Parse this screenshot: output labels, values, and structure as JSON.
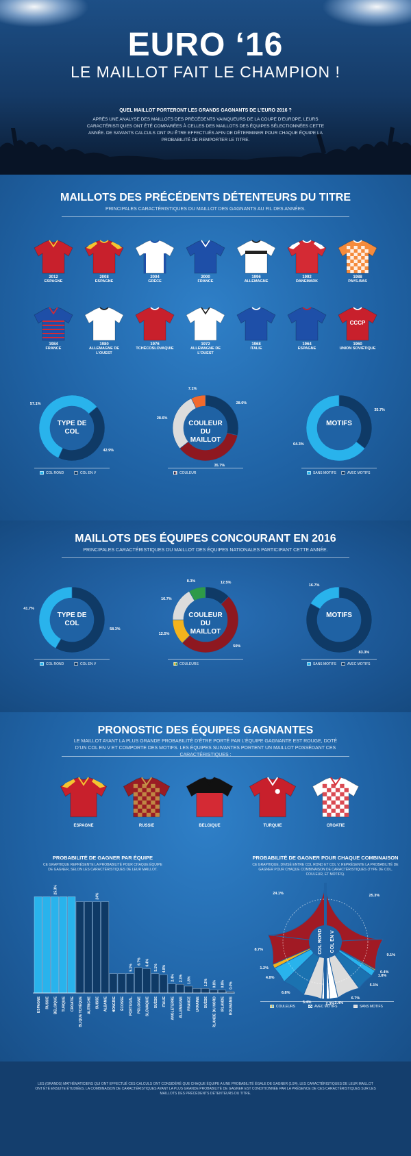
{
  "header": {
    "title": "EURO ‘16",
    "subtitle": "LE MAILLOT FAIT LE CHAMPION !",
    "question": "QUEL MAILLOT PORTERONT LES GRANDS GAGNANTS DE L’EURO 2016 ?",
    "intro": "APRÈS UNE ANALYSE DES MAILLOTS DES PRÉCÉDENTS VAINQUEURS DE LA COUPE D’EUROPE, LEURS CARACTÉRISTIQUES ONT ÉTÉ COMPARÉES À CELLES DES MAILLOTS DES ÉQUIPES SÉLECTIONNÉES CETTE ANNÉE. DE SAVANTS CALCULS ONT PU ÊTRE EFFECTUÉS AFIN DE DÉTERMINER POUR CHAQUE ÉQUIPE LA PROBABILITÉ DE REMPORTER LE TITRE."
  },
  "section1": {
    "title": "MAILLOTS DES PRÉCÉDENTS DÉTENTEURS DU TITRE",
    "subtitle": "PRINCIPALES CARACTÉRISTIQUES DU MAILLOT DES GAGNANTS AU FIL DES ANNÉES.",
    "jerseys": [
      {
        "year": "2012",
        "country": "ESPAGNE",
        "color": "#c8202c",
        "trim": "#f4c430",
        "collar": "v",
        "pattern": "none"
      },
      {
        "year": "2008",
        "country": "ESPAGNE",
        "color": "#c8202c",
        "trim": "#f4c430",
        "collar": "round",
        "pattern": "shoulders"
      },
      {
        "year": "2004",
        "country": "GRÈCE",
        "color": "#ffffff",
        "trim": "#1e4fa8",
        "collar": "round",
        "pattern": "side"
      },
      {
        "year": "2000",
        "country": "FRANCE",
        "color": "#1e4fa8",
        "trim": "#ffffff",
        "collar": "v",
        "pattern": "none"
      },
      {
        "year": "1996",
        "country": "ALLEMAGNE",
        "color": "#ffffff",
        "trim": "#222222",
        "collar": "round",
        "pattern": "chest"
      },
      {
        "year": "1992",
        "country": "DANEMARK",
        "color": "#d42a34",
        "trim": "#ffffff",
        "collar": "round",
        "pattern": "shoulders"
      },
      {
        "year": "1988",
        "country": "PAYS-BAS",
        "color": "#f58b3c",
        "trim": "#ffffff",
        "collar": "round",
        "pattern": "checks"
      },
      {
        "year": "1984",
        "country": "FRANCE",
        "color": "#1e4fa8",
        "trim": "#d42a34",
        "collar": "v",
        "pattern": "stripes"
      },
      {
        "year": "1980",
        "country": "ALLEMAGNE DE L’OUEST",
        "color": "#ffffff",
        "trim": "#222222",
        "collar": "round",
        "pattern": "none"
      },
      {
        "year": "1976",
        "country": "TCHÉCOSLOVAQUIE",
        "color": "#c8202c",
        "trim": "#ffffff",
        "collar": "round",
        "pattern": "none"
      },
      {
        "year": "1972",
        "country": "ALLEMAGNE DE L’OUEST",
        "color": "#ffffff",
        "trim": "#222222",
        "collar": "v",
        "pattern": "none"
      },
      {
        "year": "1968",
        "country": "ITALIE",
        "color": "#1e4fa8",
        "trim": "#ffffff",
        "collar": "round",
        "pattern": "none"
      },
      {
        "year": "1964",
        "country": "ESPAGNE",
        "color": "#1e4fa8",
        "trim": "#c8202c",
        "collar": "round",
        "pattern": "none"
      },
      {
        "year": "1960",
        "country": "UNION SOVIÉTIQUE",
        "color": "#c8202c",
        "trim": "#ffffff",
        "collar": "round",
        "pattern": "none",
        "text": "CCCP"
      }
    ],
    "donuts": [
      {
        "label": "TYPE DE COL",
        "slices": [
          {
            "name": "COL ROND",
            "value": 57.1,
            "color": "#29b3ec",
            "pct": "57.1%"
          },
          {
            "name": "COL EN V",
            "value": 42.9,
            "color": "#0f3a66",
            "pct": "42.9%"
          }
        ]
      },
      {
        "label": "COULEUR DU MAILLOT",
        "slices": [
          {
            "name": "bleu",
            "value": 28.6,
            "color": "#0f3a66",
            "pct": "28.6%"
          },
          {
            "name": "rouge",
            "value": 35.7,
            "color": "#8e1820",
            "pct": "35.7%"
          },
          {
            "name": "blanc",
            "value": 28.6,
            "color": "#dcdcdc",
            "pct": "28.6%"
          },
          {
            "name": "orange",
            "value": 7.1,
            "color": "#f26a2c",
            "pct": "7.1%"
          }
        ],
        "legend": "COULEUR"
      },
      {
        "label": "MOTIFS",
        "slices": [
          {
            "name": "AVEC MOTIFS",
            "value": 35.7,
            "color": "#0f3a66",
            "pct": "35.7%"
          },
          {
            "name": "SANS MOTIFS",
            "value": 64.3,
            "color": "#29b3ec",
            "pct": "64.3%"
          }
        ]
      }
    ]
  },
  "section2": {
    "title": "MAILLOTS DES ÉQUIPES CONCOURANT EN 2016",
    "subtitle": "PRINCIPALES CARACTÉRISTIQUES DU MAILLOT DES ÉQUIPES NATIONALES PARTICIPANT CETTE ANNÉE.",
    "donuts": [
      {
        "label": "TYPE DE COL",
        "slices": [
          {
            "name": "COL EN V",
            "value": 58.3,
            "color": "#0f3a66",
            "pct": "58.3%"
          },
          {
            "name": "COL ROND",
            "value": 41.7,
            "color": "#29b3ec",
            "pct": "41.7%"
          }
        ]
      },
      {
        "label": "COULEUR DU MAILLOT",
        "slices": [
          {
            "name": "bleu",
            "value": 12.5,
            "color": "#0f3a66",
            "pct": "12.5%"
          },
          {
            "name": "rouge",
            "value": 50,
            "color": "#8e1820",
            "pct": "50%"
          },
          {
            "name": "jaune",
            "value": 12.5,
            "color": "#f4b31c",
            "pct": "12.5%"
          },
          {
            "name": "blanc",
            "value": 16.7,
            "color": "#dcdcdc",
            "pct": "16.7%"
          },
          {
            "name": "vert",
            "value": 8.3,
            "color": "#2e9a48",
            "pct": "8.3%"
          }
        ],
        "legend": "COULEURS"
      },
      {
        "label": "MOTIFS",
        "slices": [
          {
            "name": "AVEC MOTIFS",
            "value": 83.3,
            "color": "#0f3a66",
            "pct": "83.3%"
          },
          {
            "name": "SANS MOTIFS",
            "value": 16.7,
            "color": "#29b3ec",
            "pct": "16.7%"
          }
        ]
      }
    ]
  },
  "section3": {
    "title": "PRONOSTIC DES ÉQUIPES GAGNANTES",
    "subtitle": "LE MAILLOT AYANT LA PLUS GRANDE PROBABILITÉ D’ÊTRE PORTÉ PAR L’ÉQUIPE GAGNANTE EST ROUGE, DOTÉ D’UN COL EN V ET COMPORTE DES MOTIFS. LES ÉQUIPES SUIVANTES PORTENT UN MAILLOT POSSÉDANT CES CARACTÉRISTIQUES :",
    "winners": [
      {
        "country": "ESPAGNE",
        "color": "#c8202c",
        "trim": "#f4c430",
        "pattern": "shoulders"
      },
      {
        "country": "RUSSIE",
        "color": "#9a1c24",
        "trim": "#c79a4a",
        "pattern": "checks"
      },
      {
        "country": "BELGIQUE",
        "color": "#d42a34",
        "trim": "#111111",
        "pattern": "yoke"
      },
      {
        "country": "TURQUIE",
        "color": "#c8202c",
        "trim": "#ffffff",
        "pattern": "badge"
      },
      {
        "country": "CROATIE",
        "color": "#ffffff",
        "trim": "#d42a34",
        "pattern": "checks"
      }
    ],
    "bar_title": "PROBABILITÉ DE GAGNER PAR ÉQUIPE",
    "bar_sub": "CE GRAPHIQUE REPRÉSENTE LA PROBABILITÉ POUR CHAQUE ÉQUIPE DE GAGNER, SELON LES CARACTÉRISTIQUES DE LEUR MAILLOT.",
    "combo_title": "PROBABILITÉ DE GAGNER POUR CHAQUE COMBINAISON",
    "combo_sub": "CE GRAPHIQUE, DIVISÉ ENTRE COL ROND ET COL V, REPRÉSENTE LA PROBABILITÉ DE GAGNER POUR CHAQUE COMBINAISON DE CARACTÉRISTIQUES (TYPE DE COL, COULEUR, ET MOTIFS).",
    "combo_inner_left": "COL ROND",
    "combo_inner_right": "COL EN V",
    "combo_legend": [
      "COULEURS",
      "AVEC MOTIFS",
      "SANS MOTIFS"
    ]
  },
  "chart_data": [
    {
      "type": "pie",
      "title": "TYPE DE COL",
      "categories": [
        "COL ROND",
        "COL EN V"
      ],
      "values": [
        57.1,
        42.9
      ]
    },
    {
      "type": "pie",
      "title": "COULEUR DU MAILLOT",
      "categories": [
        "bleu",
        "rouge",
        "blanc",
        "orange"
      ],
      "values": [
        28.6,
        35.7,
        28.6,
        7.1
      ]
    },
    {
      "type": "pie",
      "title": "MOTIFS",
      "categories": [
        "SANS MOTIFS",
        "AVEC MOTIFS"
      ],
      "values": [
        64.3,
        35.7
      ]
    },
    {
      "type": "pie",
      "title": "TYPE DE COL",
      "categories": [
        "COL ROND",
        "COL EN V"
      ],
      "values": [
        41.7,
        58.3
      ]
    },
    {
      "type": "pie",
      "title": "COULEUR DU MAILLOT",
      "categories": [
        "bleu",
        "rouge",
        "jaune",
        "blanc",
        "vert"
      ],
      "values": [
        12.5,
        50,
        12.5,
        16.7,
        8.3
      ]
    },
    {
      "type": "pie",
      "title": "MOTIFS",
      "categories": [
        "SANS MOTIFS",
        "AVEC MOTIFS"
      ],
      "values": [
        16.7,
        83.3
      ]
    },
    {
      "type": "bar",
      "title": "PROBABILITÉ DE GAGNER PAR ÉQUIPE",
      "categories": [
        "ESPAGNE",
        "RUSSIE",
        "BELGIQUE",
        "TURQUIE",
        "CROATIE",
        "RÉPUBLIQUE TCHÈQUE",
        "AUTRICHE",
        "SUISSE",
        "ALBANIE",
        "HONGRIE",
        "ÉCOSSE",
        "PORTUGAL",
        "POLOGNE",
        "SLOVAQUIE",
        "SUÈDE",
        "ITALIE",
        "ANGLETERRE",
        "ALLEMAGNE",
        "FRANCE",
        "UKRAINE",
        "SUÈDE",
        "IRLANDE DU NORD",
        "IRLANDE",
        "ROUMANIE"
      ],
      "values": [
        25.3,
        25.3,
        25.3,
        25.3,
        25.3,
        24,
        24,
        24,
        24,
        5.1,
        5.1,
        5.1,
        6.7,
        6.4,
        5.1,
        4.8,
        2.4,
        2.3,
        1.8,
        1.2,
        1.2,
        0.8,
        0.8,
        0.4
      ],
      "labels": [
        {
          "index": 2,
          "text": "25.3%"
        },
        {
          "index": 7,
          "text": "24%"
        },
        {
          "index": 11,
          "text": "5.1%"
        },
        {
          "index": 12,
          "text": "6.7%"
        },
        {
          "index": 13,
          "text": "6.4%"
        },
        {
          "index": 14,
          "text": "5.1%"
        },
        {
          "index": 15,
          "text": "4.8%"
        },
        {
          "index": 16,
          "text": "2.4%"
        },
        {
          "index": 17,
          "text": "2.3%"
        },
        {
          "index": 18,
          "text": "1.8%"
        },
        {
          "index": 20,
          "text": "1.2%"
        },
        {
          "index": 21,
          "text": "0.8%"
        },
        {
          "index": 22,
          "text": "0.8%"
        },
        {
          "index": 23,
          "text": "0.4%"
        }
      ],
      "colors": [
        "#29b3ec",
        "#0f3a66"
      ],
      "ylim": [
        0,
        27
      ]
    },
    {
      "type": "pie",
      "title": "PROBABILITÉ DE GAGNER POUR CHAQUE COMBINAISON",
      "slices": [
        {
          "value": 25.3,
          "pct": "25.3%",
          "color": "#a11a24"
        },
        {
          "value": 9.1,
          "pct": "9.1%",
          "color": "#a11a24"
        },
        {
          "value": 0.4,
          "pct": "0.4%",
          "color": "#f4b31c"
        },
        {
          "value": 1.8,
          "pct": "1.8%",
          "color": "#29b3ec"
        },
        {
          "value": 5.1,
          "pct": "5.1%",
          "color": "#1b72b0"
        },
        {
          "value": 6.7,
          "pct": "6.7%",
          "color": "#dcdcdc"
        },
        {
          "value": 2.4,
          "pct": "2.4%",
          "color": "#ffffff"
        },
        {
          "value": 2.3,
          "pct": "2.3%",
          "color": "#ffffff"
        },
        {
          "value": 5.4,
          "pct": "5.4%",
          "color": "#dcdcdc"
        },
        {
          "value": 6.8,
          "pct": "6.8%",
          "color": "#1b72b0"
        },
        {
          "value": 4.8,
          "pct": "4.8%",
          "color": "#29b3ec"
        },
        {
          "value": 1.2,
          "pct": "1.2%",
          "color": "#f4b31c"
        },
        {
          "value": 8.7,
          "pct": "8.7%",
          "color": "#a11a24"
        },
        {
          "value": 24.1,
          "pct": "24.1%",
          "color": "#a11a24"
        }
      ]
    }
  ],
  "footer": "LES (GRANDS) MATHÉMATICIENS QUI ONT EFFECTUÉ CES CALCULS ONT CONSIDÉRÉ QUE CHAQUE ÉQUIPE A UNE PROBABILITÉ ÉGALE DE GAGNER (1/24). LES CARACTÉRISTIQUES DE LEUR MAILLOT ONT ÉTÉ ENSUITE ÉTUDIÉES. LA COMBINAISON DE CARACTÉRISTIQUES AYANT LA PLUS GRANDE PROBABILITÉ DE GAGNER EST CONDITIONNÉE PAR LA PRÉSENCE DE CES CARACTÉRISTIQUES SUR LES MAILLOTS DES PRÉCÉDENTS DÉTENTEURS DU TITRE."
}
